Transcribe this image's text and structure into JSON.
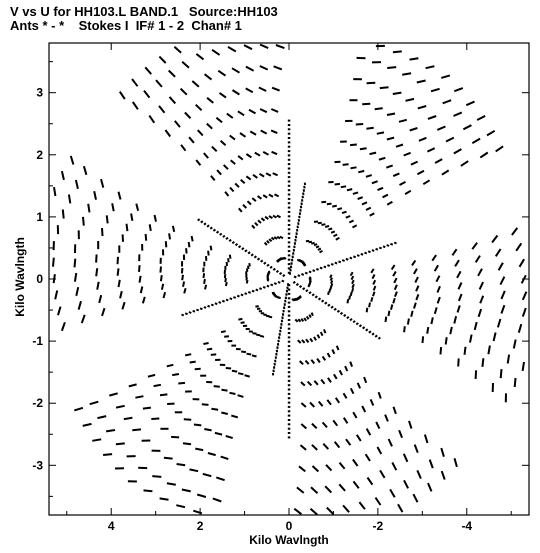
{
  "header": {
    "line1": "V vs U for HH103.L BAND.1   Source:HH103",
    "line2": "Ants * - *    Stokes I  IF# 1 - 2  Chan# 1"
  },
  "chart_data": {
    "type": "scatter",
    "title": "V vs U for HH103.L BAND.1   Source:HH103",
    "subtitle": "Ants * - *    Stokes I  IF# 1 - 2  Chan# 1",
    "xlabel": "Kilo Wavlngth",
    "ylabel": "Kilo Wavlngth",
    "xlim": [
      5.4,
      -5.4
    ],
    "ylim": [
      -3.8,
      3.8
    ],
    "x_reversed": true,
    "xticks": [
      4,
      2,
      0,
      -2,
      -4
    ],
    "yticks": [
      3,
      2,
      1,
      0,
      -1,
      -2,
      -3
    ],
    "xtick_labels": [
      "4",
      "2",
      "0",
      "-2",
      "-4"
    ],
    "ytick_labels": [
      "3",
      "2",
      "1",
      "0",
      "-1",
      "-2",
      "-3"
    ],
    "grid": false,
    "legend": "none",
    "marker_color": "#000000",
    "pattern": {
      "description_arms": "six-fold symmetric uv coverage (snapshot tracks)",
      "arm_directions_deg": [
        0,
        60,
        120,
        180,
        240,
        300
      ],
      "arm_lengths_klambda": [
        0.45,
        0.9,
        1.35,
        1.8,
        2.25,
        2.7,
        3.15,
        3.6,
        4.05,
        4.5,
        4.95,
        5.3
      ],
      "arm_spread_deg": 36,
      "arm_tilt_deg": 8
    }
  }
}
